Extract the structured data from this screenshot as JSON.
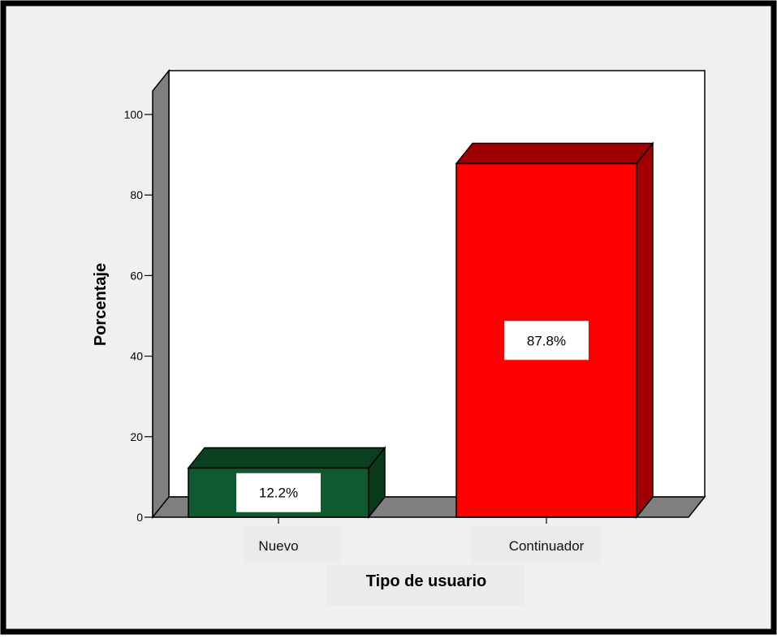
{
  "chart_data": {
    "type": "bar",
    "style": "3d",
    "categories": [
      "Nuevo",
      "Continuador"
    ],
    "values": [
      12.2,
      87.8
    ],
    "data_labels": [
      "12.2%",
      "87.8%"
    ],
    "xlabel": "Tipo de usuario",
    "ylabel": "Porcentaje",
    "ylim": [
      0,
      100
    ],
    "yticks": [
      0,
      20,
      40,
      60,
      80,
      100
    ],
    "grid": false,
    "legend": "none",
    "colors": {
      "bars": [
        "#0f5a2e",
        "#ff0000"
      ],
      "bar_tops": [
        "#0b3f20",
        "#a00000"
      ],
      "bar_sides": [
        "#0a3a1c",
        "#a00000"
      ],
      "background": "#f0f0f0",
      "plot_area": "#ffffff",
      "walls": "#7f7f7f",
      "frame": "#000000"
    }
  }
}
